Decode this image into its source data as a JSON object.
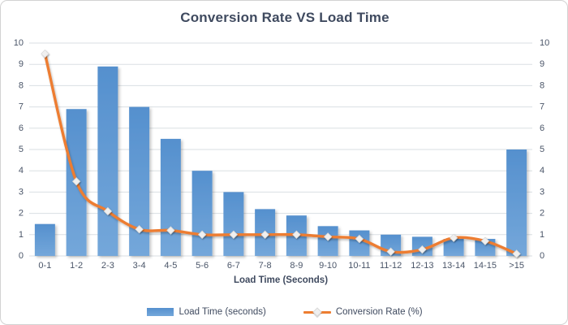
{
  "chart_data": {
    "type": "combo",
    "title": "Conversion Rate VS Load Time",
    "xlabel": "Load Time (Seconds)",
    "ylabel": "",
    "categories": [
      "0-1",
      "1-2",
      "2-3",
      "3-4",
      "4-5",
      "5-6",
      "6-7",
      "7-8",
      "8-9",
      "9-10",
      "10-11",
      "11-12",
      "12-13",
      "13-14",
      "14-15",
      ">15"
    ],
    "series": [
      {
        "name": "Load Time (seconds)",
        "type": "bar",
        "values": [
          1.5,
          6.9,
          8.9,
          7.0,
          5.5,
          4.0,
          3.0,
          2.2,
          1.9,
          1.4,
          1.2,
          1.0,
          0.9,
          0.8,
          0.8,
          5.0
        ]
      },
      {
        "name": "Conversion Rate (%)",
        "type": "line",
        "smooth": true,
        "marker": "diamond",
        "values": [
          9.5,
          3.5,
          2.1,
          1.25,
          1.2,
          1.0,
          1.0,
          1.0,
          1.0,
          0.9,
          0.8,
          0.2,
          0.3,
          0.85,
          0.7,
          0.1
        ]
      }
    ],
    "ylim": [
      0,
      10
    ],
    "ytick_step": 1,
    "right_axis": true,
    "grid": "horizontal",
    "legend_position": "bottom",
    "colors": {
      "bar_top": "#5590ce",
      "bar_bottom": "#74a7da",
      "line": "#ed7d31",
      "marker_fill": "#f0f0f0",
      "marker_stroke": "#d9d9d9",
      "gridline": "#dadfe3",
      "tick_text": "#4a5568",
      "title_text": "#3f4a5f"
    }
  }
}
